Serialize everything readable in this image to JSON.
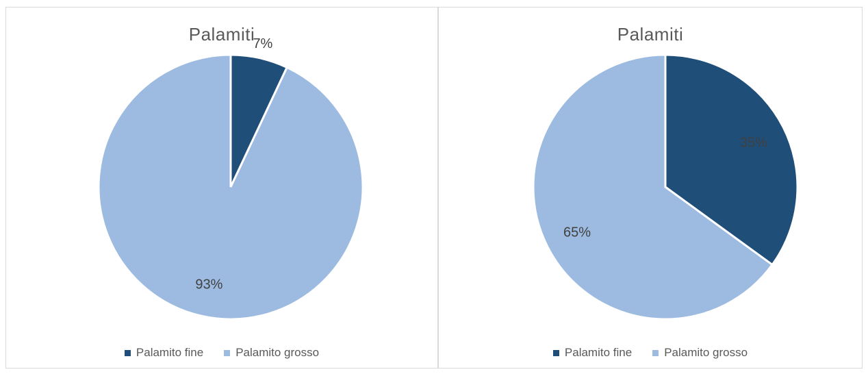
{
  "colors": {
    "fine": "#1f4e79",
    "grosso": "#9dbbe1"
  },
  "chart_data": [
    {
      "type": "pie",
      "title": "Palamiti",
      "categories": [
        "Palamito fine",
        "Palamito grosso"
      ],
      "values": [
        7,
        93
      ],
      "labels": [
        "7%",
        "93%"
      ],
      "legend": "bottom"
    },
    {
      "type": "pie",
      "title": "Palamiti",
      "categories": [
        "Palamito fine",
        "Palamito grosso"
      ],
      "values": [
        35,
        65
      ],
      "labels": [
        "35%",
        "65%"
      ],
      "legend": "bottom"
    }
  ]
}
